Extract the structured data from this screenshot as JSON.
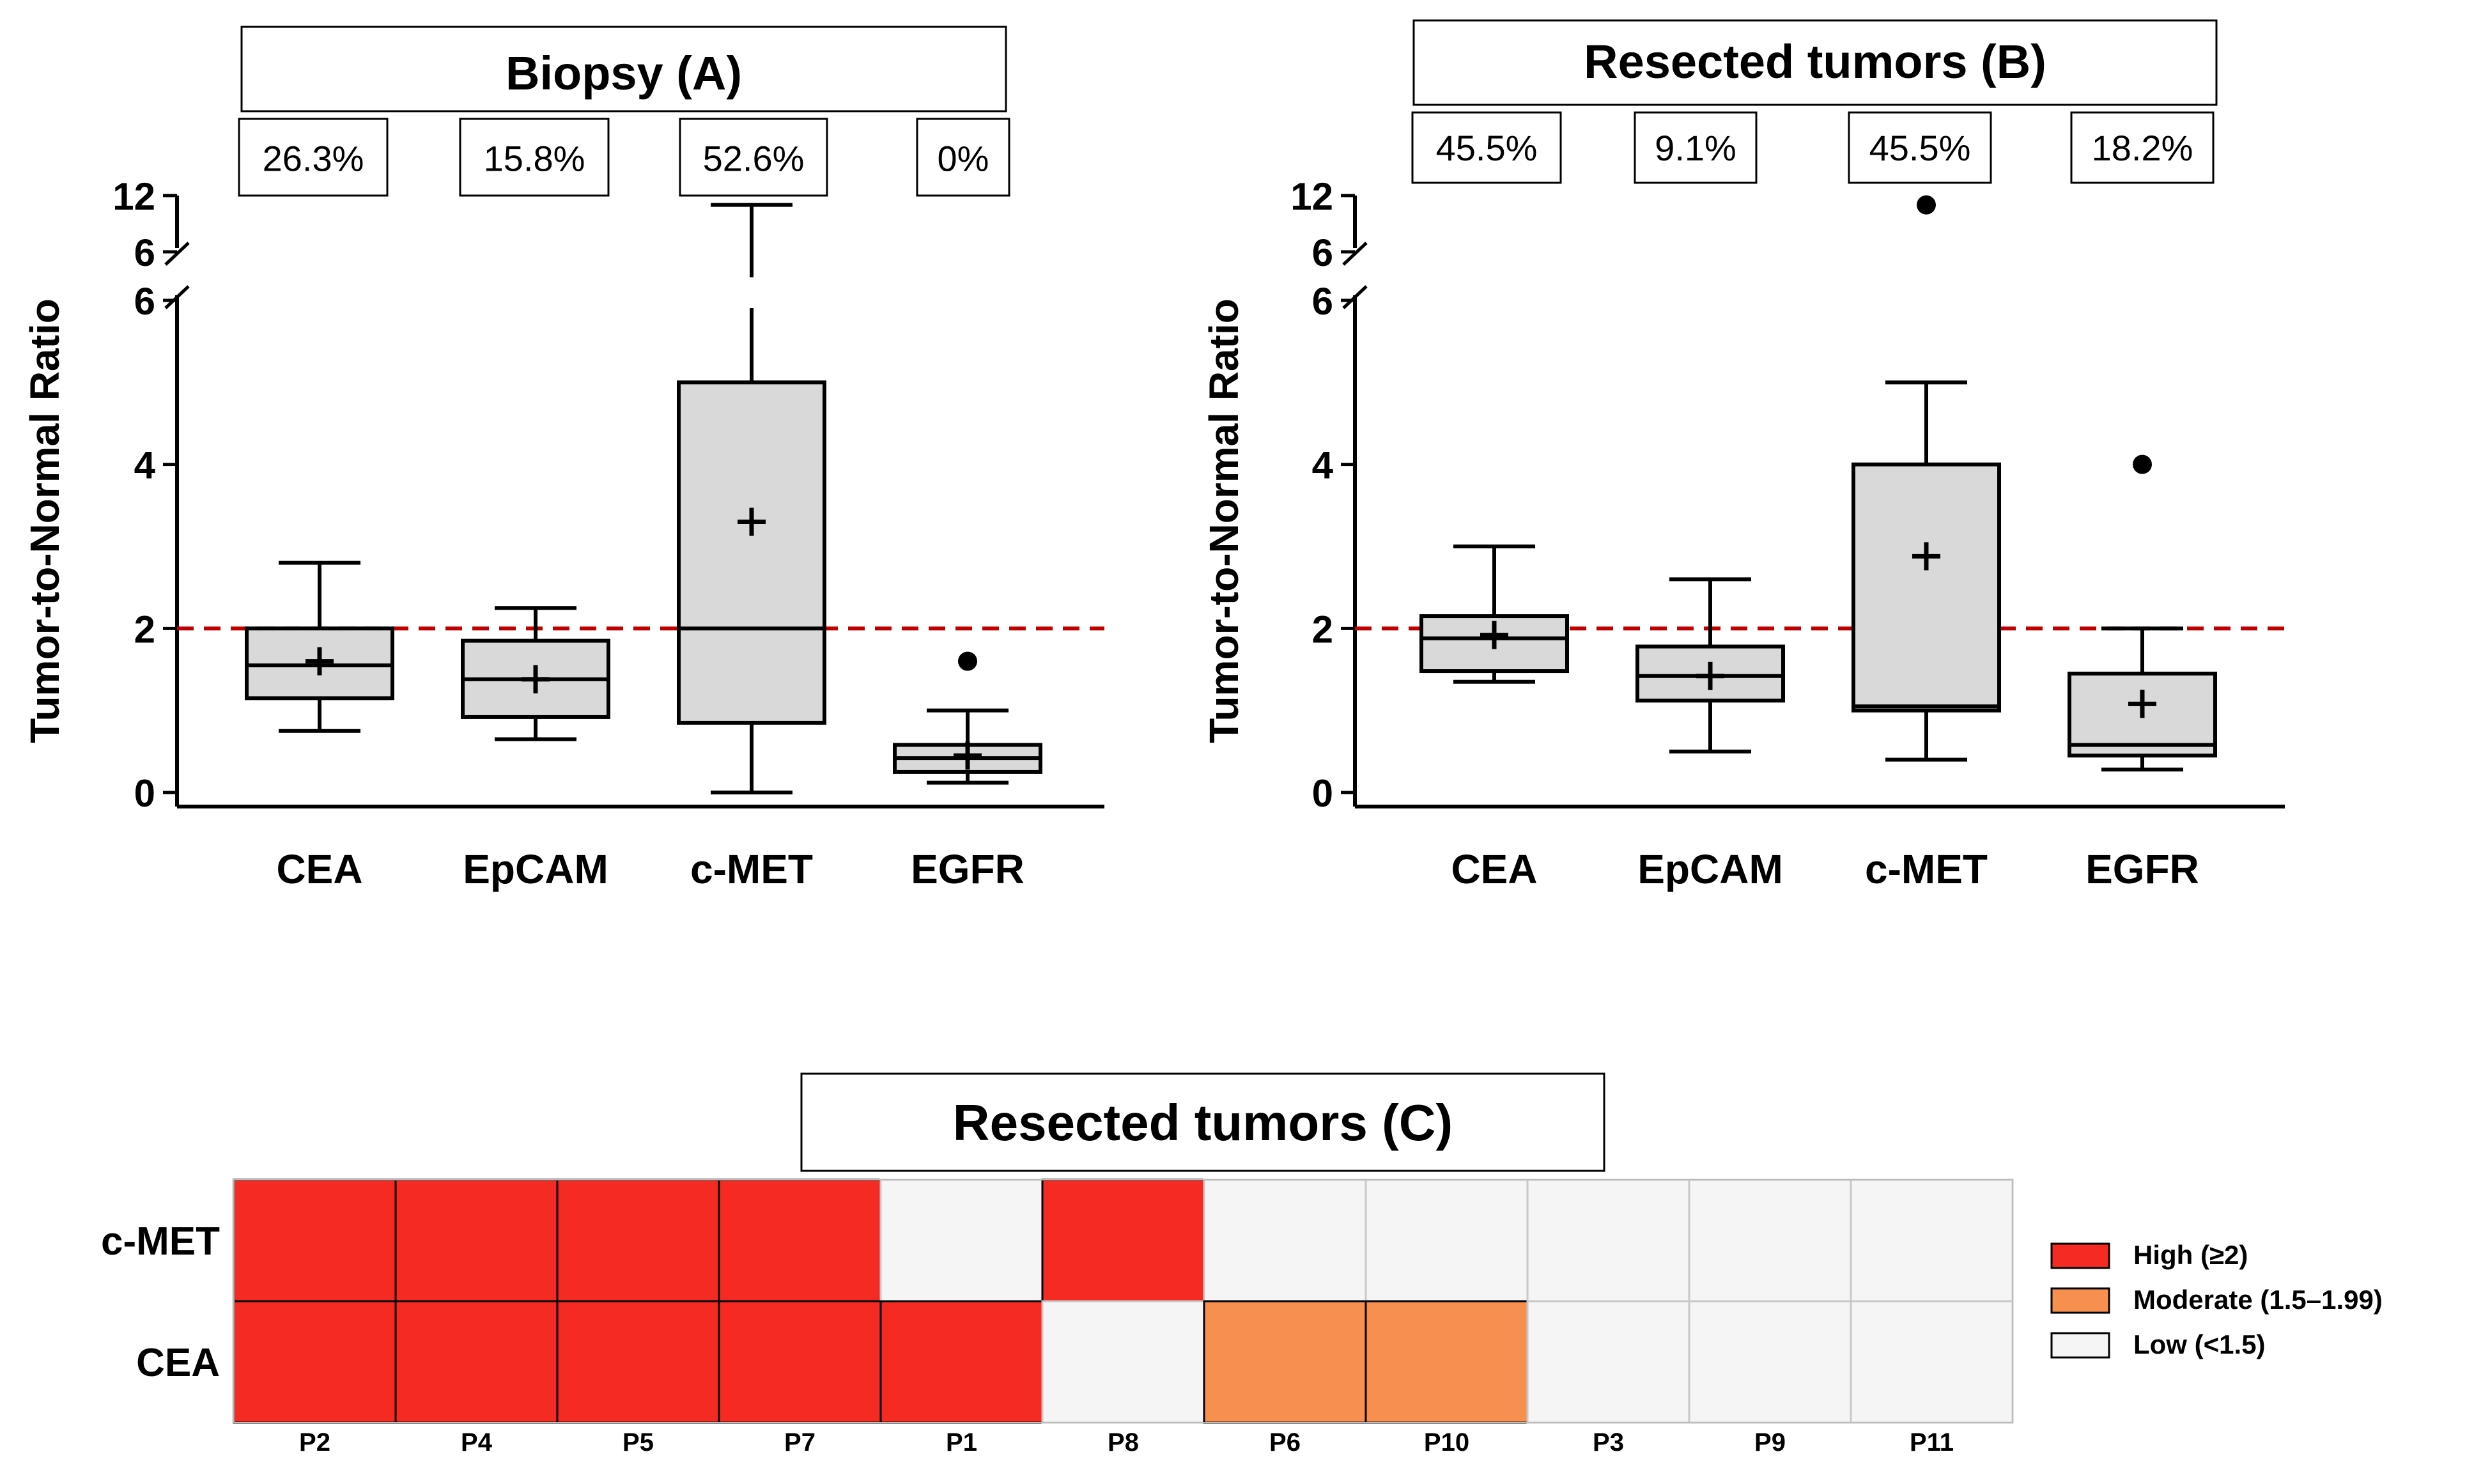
{
  "colors": {
    "box_fill": "#d9d9d9",
    "threshold_line": "#c00000",
    "high": "#f52a22",
    "moderate": "#f7904f",
    "low": "#f5f5f5"
  },
  "chart_data": [
    {
      "panel": "A",
      "type": "box",
      "title": "Biopsy (A)",
      "ylabel": "Tumor-to-Normal Ratio",
      "categories": [
        "CEA",
        "EpCAM",
        "c-MET",
        "EGFR"
      ],
      "percent_labels": [
        "26.3%",
        "15.8%",
        "52.6%",
        "0%"
      ],
      "yticks": [
        "0",
        "2",
        "4",
        "6"
      ],
      "break_ticks": [
        "6",
        "12"
      ],
      "axis_break": [
        6,
        12
      ],
      "threshold": 2,
      "boxes": [
        {
          "name": "CEA",
          "min": 0.75,
          "q1": 1.15,
          "median": 1.55,
          "q3": 2.0,
          "max": 2.8,
          "mean": 1.6,
          "outliers": []
        },
        {
          "name": "EpCAM",
          "min": 0.65,
          "q1": 0.92,
          "median": 1.38,
          "q3": 1.85,
          "max": 2.25,
          "mean": 1.38,
          "outliers": []
        },
        {
          "name": "c-MET",
          "min": 0.0,
          "q1": 0.85,
          "median": 2.0,
          "q3": 5.0,
          "max": 11.0,
          "max_broken": true,
          "mean": 3.3,
          "outliers": []
        },
        {
          "name": "EGFR",
          "min": 0.12,
          "q1": 0.25,
          "median": 0.42,
          "q3": 0.58,
          "max": 1.0,
          "mean": 0.45,
          "outliers": [
            1.6
          ]
        }
      ]
    },
    {
      "panel": "B",
      "type": "box",
      "title": "Resected tumors (B)",
      "ylabel": "Tumor-to-Normal Ratio",
      "categories": [
        "CEA",
        "EpCAM",
        "c-MET",
        "EGFR"
      ],
      "percent_labels": [
        "45.5%",
        "9.1%",
        "45.5%",
        "18.2%"
      ],
      "yticks": [
        "0",
        "2",
        "4",
        "6"
      ],
      "break_ticks": [
        "6",
        "12"
      ],
      "axis_break": [
        6,
        12
      ],
      "threshold": 2,
      "boxes": [
        {
          "name": "CEA",
          "min": 1.35,
          "q1": 1.48,
          "median": 1.88,
          "q3": 2.15,
          "max": 3.0,
          "mean": 1.92,
          "outliers": []
        },
        {
          "name": "EpCAM",
          "min": 0.5,
          "q1": 1.12,
          "median": 1.42,
          "q3": 1.78,
          "max": 2.6,
          "mean": 1.42,
          "outliers": []
        },
        {
          "name": "c-MET",
          "min": 0.4,
          "q1": 1.0,
          "median": 1.05,
          "q3": 4.0,
          "max": 5.0,
          "mean": 2.88,
          "outliers": [
            11.0
          ]
        },
        {
          "name": "EGFR",
          "min": 0.28,
          "q1": 0.45,
          "median": 0.58,
          "q3": 1.45,
          "max": 2.0,
          "mean": 1.08,
          "outliers": [
            4.0
          ]
        }
      ]
    },
    {
      "panel": "C",
      "type": "heatmap",
      "title": "Resected tumors (C)",
      "rows": [
        "c-MET",
        "CEA"
      ],
      "columns": [
        "P2",
        "P4",
        "P5",
        "P7",
        "P1",
        "P8",
        "P6",
        "P10",
        "P3",
        "P9",
        "P11"
      ],
      "values": [
        [
          "High",
          "High",
          "High",
          "High",
          "Low",
          "High",
          "Low",
          "Low",
          "Low",
          "Low",
          "Low"
        ],
        [
          "High",
          "High",
          "High",
          "High",
          "High",
          "Low",
          "Moderate",
          "Moderate",
          "Low",
          "Low",
          "Low"
        ]
      ],
      "legend": [
        {
          "key": "High",
          "label": "High (≥2)"
        },
        {
          "key": "Moderate",
          "label": "Moderate (1.5–1.99)"
        },
        {
          "key": "Low",
          "label": "Low (<1.5)"
        }
      ]
    }
  ]
}
